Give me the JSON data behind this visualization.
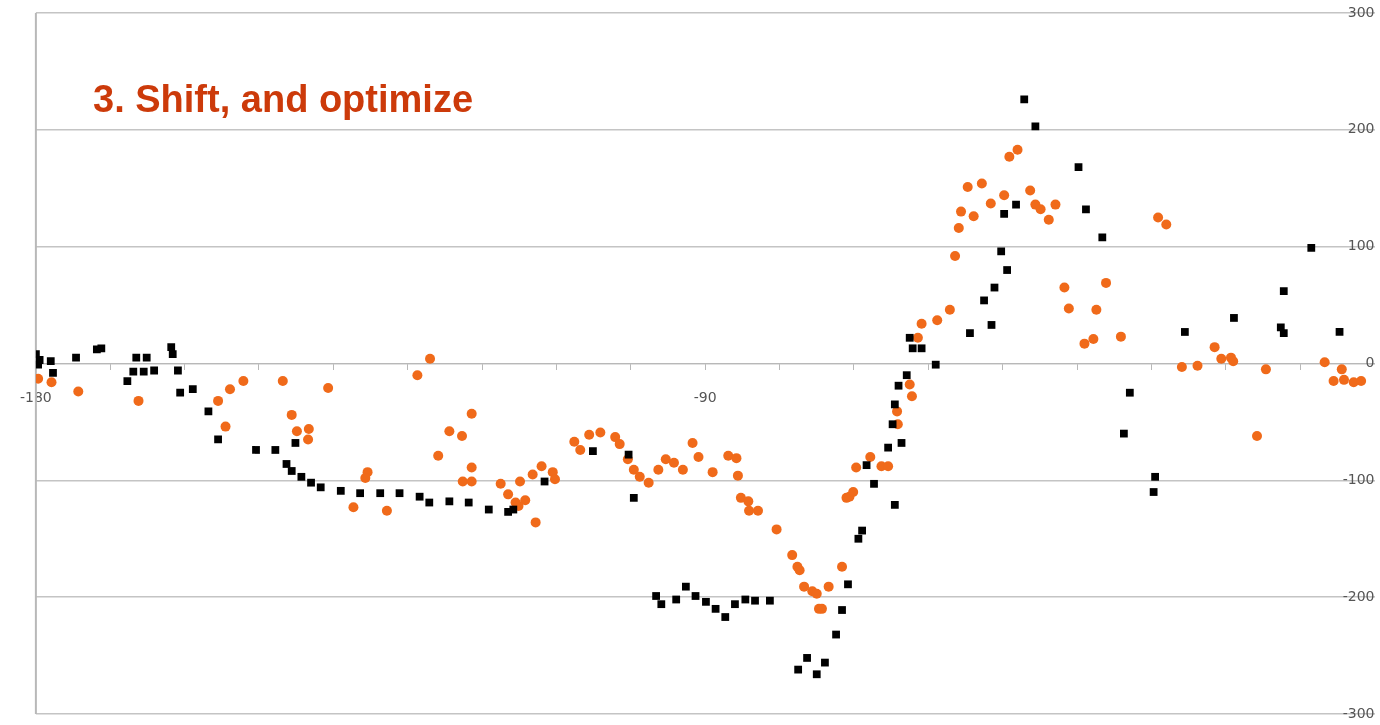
{
  "chart_data": {
    "type": "scatter",
    "title": "3. Shift, and optimize",
    "xlim": [
      -180,
      0
    ],
    "ylim": [
      -300,
      300
    ],
    "xticks": [
      -180,
      {
        "value": -170,
        "label": null
      },
      {
        "value": -160,
        "label": null
      },
      {
        "value": -150,
        "label": null
      },
      {
        "value": -140,
        "label": null
      },
      {
        "value": -130,
        "label": null
      },
      {
        "value": -120,
        "label": null
      },
      {
        "value": -110,
        "label": null
      },
      {
        "value": -100,
        "label": null
      },
      -90,
      {
        "value": -80,
        "label": null
      },
      {
        "value": -70,
        "label": null
      },
      {
        "value": -60,
        "label": null
      },
      {
        "value": -50,
        "label": null
      },
      {
        "value": -40,
        "label": null
      },
      {
        "value": -30,
        "label": null
      },
      {
        "value": -20,
        "label": null
      },
      {
        "value": -10,
        "label": null
      }
    ],
    "yticks": [
      -300,
      -200,
      -100,
      0,
      100,
      200,
      300
    ],
    "grid": "y",
    "legend": false,
    "series": [
      {
        "color": "#000000",
        "marker": "square",
        "x": [
          -180,
          -179.5,
          -179.7,
          -178,
          -177.7,
          -174.6,
          -171.8,
          -171.2,
          -167.7,
          -166.9,
          -166.5,
          -165.5,
          -165.1,
          -164.1,
          -161.8,
          -161.6,
          -160.9,
          -160.6,
          -158.9,
          -156.8,
          -155.5,
          -150.4,
          -147.8,
          -145.1,
          -146.3,
          -145.6,
          -144.3,
          -143,
          -141.7,
          -139,
          -136.4,
          -133.7,
          -131.1,
          -128.4,
          -127.1,
          -124.4,
          -121.8,
          -119.1,
          -116.5,
          -115.8,
          -111.6,
          -105.1,
          -100.3,
          -99.6,
          -96.6,
          -95.9,
          -93.9,
          -92.6,
          -91.3,
          -89.9,
          -88.6,
          -87.3,
          -86,
          -84.6,
          -83.3,
          -81.3,
          -77.5,
          -76.3,
          -75,
          -73.9,
          -72.4,
          -71.6,
          -70.8,
          -69.4,
          -68.9,
          -67.3,
          -68.3,
          -64.5,
          -65.4,
          -63.6,
          -64.8,
          -64.5,
          -64,
          -62.9,
          -62.5,
          -62.1,
          -60.9,
          -59,
          -54.4,
          -51.5,
          -52.5,
          -51.1,
          -50.2,
          -49.4,
          -49.8,
          -48.2,
          -47.1,
          -45.6,
          -39.8,
          -38.8,
          -36.6,
          -33.7,
          -32.9,
          -29.7,
          -29.5,
          -25.5,
          -18.9,
          -12.6,
          -12.2,
          -12.2,
          -8.5,
          -4.7
        ],
        "values": [
          8,
          3,
          -1,
          2,
          -8,
          5,
          12,
          13,
          -15,
          -7,
          5,
          -7,
          5,
          -6,
          14,
          8,
          -6,
          -25,
          -22,
          -41,
          -65,
          -74,
          -74,
          -68,
          -86,
          -92,
          -97,
          -102,
          -106,
          -109,
          -111,
          -111,
          -111,
          -114,
          -119,
          -118,
          -119,
          -125,
          -127,
          -125,
          -101,
          -75,
          -78,
          -115,
          -199,
          -206,
          -202,
          -191,
          -199,
          -204,
          -210,
          -217,
          -206,
          -202,
          -203,
          -203,
          -262,
          -252,
          -266,
          -256,
          -232,
          -211,
          -189,
          -150,
          -143,
          -103,
          -87,
          -121,
          -72,
          -68,
          -52,
          -35,
          -19,
          -10,
          22,
          13,
          13,
          -1,
          26,
          33,
          54,
          65,
          96,
          80,
          128,
          136,
          226,
          203,
          168,
          132,
          108,
          -60,
          -25,
          -110,
          -97,
          27,
          39,
          31,
          26,
          62,
          99,
          27
        ]
      },
      {
        "color": "#f06a1a",
        "marker": "circle",
        "x": [
          -179.7,
          -177.9,
          -174.3,
          -166.2,
          -155.5,
          -154.5,
          -153.9,
          -152.1,
          -146.8,
          -140.7,
          -145.6,
          -144.9,
          -143.3,
          -143.4,
          -135.4,
          -135.7,
          -137.3,
          -132.8,
          -128.7,
          -127,
          -124.4,
          -125.9,
          -122.7,
          -121.4,
          -122.6,
          -121.4,
          -121.4,
          -117.5,
          -116.5,
          -115.5,
          -115.1,
          -114.2,
          -112.8,
          -114.9,
          -113.2,
          -112,
          -110.5,
          -110.2,
          -107.6,
          -106.8,
          -105.6,
          -104.1,
          -102.1,
          -101.5,
          -100.4,
          -99.6,
          -98.8,
          -97.6,
          -96.3,
          -95.3,
          -94.2,
          -93,
          -91.7,
          -90.9,
          -89,
          -86.9,
          -85.8,
          -85.6,
          -85.2,
          -84.2,
          -84.1,
          -82.9,
          -80.4,
          -78.3,
          -77.6,
          -77.3,
          -76.7,
          -75.6,
          -75,
          -74.7,
          -74.3,
          -73.4,
          -71.6,
          -71,
          -70.6,
          -70.1,
          -69.7,
          -67.8,
          -66.3,
          -65.4,
          -64.2,
          -64.1,
          -62.2,
          -62.5,
          -61.4,
          -60.9,
          -58.8,
          -57.1,
          -56.4,
          -55.9,
          -55.6,
          -53.9,
          -54.7,
          -52.8,
          -51.6,
          -49.8,
          -49.1,
          -48,
          -46.3,
          -45.6,
          -44.9,
          -43.8,
          -42.9,
          -41.7,
          -41.1,
          -39,
          -37.8,
          -37.4,
          -36.1,
          -34.1,
          -29.1,
          -28,
          -25.9,
          -23.8,
          -21.5,
          -20.6,
          -19.3,
          -19,
          -15.8,
          -14.6,
          -6.7,
          -4.4,
          -5.5,
          -4.1,
          -2.8,
          -1.8
        ],
        "values": [
          -13,
          -16,
          -24,
          -32,
          -32,
          -54,
          -22,
          -15,
          -15,
          -21,
          -44,
          -58,
          -56,
          -65,
          -93,
          -98,
          -123,
          -126,
          -10,
          4,
          -58,
          -79,
          -62,
          -43,
          -101,
          -89,
          -101,
          -103,
          -112,
          -119,
          -122,
          -117,
          -136,
          -101,
          -95,
          -88,
          -93,
          -99,
          -67,
          -74,
          -61,
          -59,
          -63,
          -69,
          -82,
          -91,
          -97,
          -102,
          -91,
          -82,
          -85,
          -91,
          -68,
          -80,
          -93,
          -79,
          -81,
          -96,
          -115,
          -118,
          -126,
          -126,
          -142,
          -164,
          -174,
          -177,
          -191,
          -195,
          -197,
          -210,
          -210,
          -191,
          -174,
          -115,
          -114,
          -110,
          -89,
          -80,
          -88,
          -88,
          -41,
          -52,
          -28,
          -18,
          22,
          34,
          37,
          46,
          92,
          116,
          130,
          126,
          151,
          154,
          137,
          144,
          177,
          183,
          148,
          136,
          132,
          123,
          136,
          65,
          47,
          17,
          21,
          46,
          69,
          23,
          125,
          119,
          -3,
          -2,
          14,
          4,
          5,
          2,
          -62,
          -5,
          1,
          -5,
          -15,
          -14,
          -16,
          -15
        ]
      }
    ]
  }
}
